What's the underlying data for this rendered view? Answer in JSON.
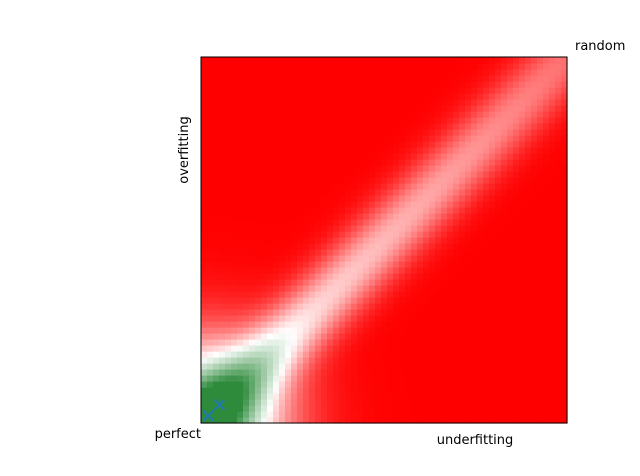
{
  "chart_data": {
    "type": "heatmap",
    "title": "",
    "xlabel": "underfitting",
    "ylabel": "overfitting",
    "corner_labels": {
      "origin": "perfect",
      "far_corner": "random"
    },
    "xlim": [
      0,
      1
    ],
    "ylim": [
      0,
      1
    ],
    "grid": false,
    "legend": "none",
    "colormap": {
      "good": "#2e8b3c",
      "neutral": "#ffffff",
      "bad": "#ff0000"
    },
    "regions": [
      {
        "name": "good",
        "color": "#2e8b3c",
        "x_range": [
          0.0,
          0.28
        ],
        "y_range": [
          0.0,
          0.28
        ]
      },
      {
        "name": "transition",
        "color": "#ffffff",
        "along": "diagonal"
      },
      {
        "name": "bad",
        "color": "#ff0000",
        "where": "away from the diagonal"
      }
    ],
    "series": [
      {
        "marker": "x",
        "color": "#1f77b4",
        "points": [
          [
            0.05,
            0.05
          ],
          [
            0.02,
            0.02
          ]
        ]
      }
    ]
  }
}
